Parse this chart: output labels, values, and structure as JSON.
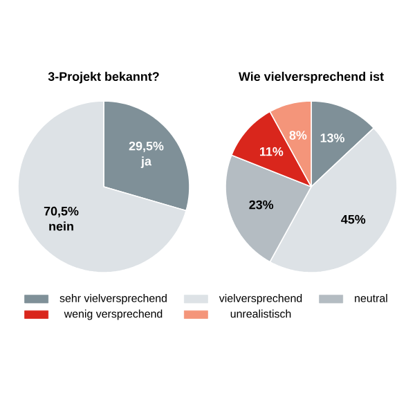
{
  "chart_data": [
    {
      "type": "pie",
      "title": "3-Projekt bekannt?",
      "categories": [
        "ja",
        "nein"
      ],
      "values": [
        29.5,
        70.5
      ],
      "colors": [
        "#7f9098",
        "#dde2e6"
      ],
      "value_labels": [
        "29,5%",
        "70,5%"
      ],
      "legend": false
    },
    {
      "type": "pie",
      "title": "Wie vielversprechend ist",
      "categories": [
        "sehr vielversprechend",
        "vielversprechend",
        "neutral",
        "wenig versprechend",
        "unrealistisch"
      ],
      "values": [
        13,
        45,
        23,
        11,
        8
      ],
      "colors": [
        "#7f9098",
        "#dde2e6",
        "#b4bcc2",
        "#d9261c",
        "#f4957a"
      ],
      "value_labels": [
        "13%",
        "45%",
        "23%",
        "11%",
        "8%"
      ],
      "legend": "bottom"
    }
  ]
}
